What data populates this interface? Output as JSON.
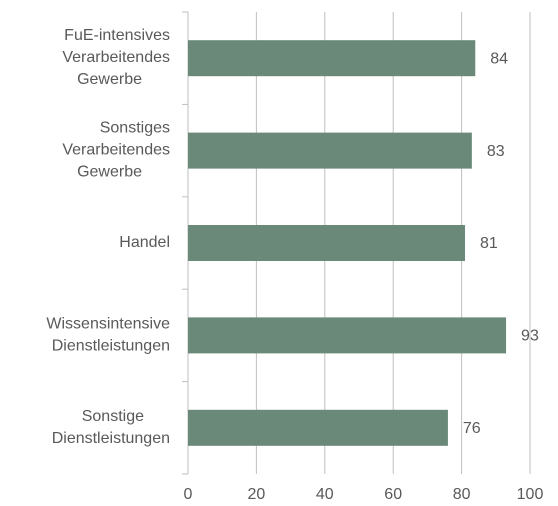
{
  "chart_data": {
    "type": "hbar",
    "categories": [
      "FuE-intensives Verarbeitendes Gewerbe",
      "Sonstiges Verarbeitendes Gewerbe",
      "Handel",
      "Wissensintensive Dienstleistungen",
      "Sonstige Dienstleistungen"
    ],
    "values": [
      84,
      83,
      81,
      93,
      76
    ],
    "color": "#6b8979",
    "xlim": [
      0,
      100
    ],
    "xticks": [
      0,
      20,
      40,
      60,
      80,
      100
    ],
    "grid": true
  }
}
